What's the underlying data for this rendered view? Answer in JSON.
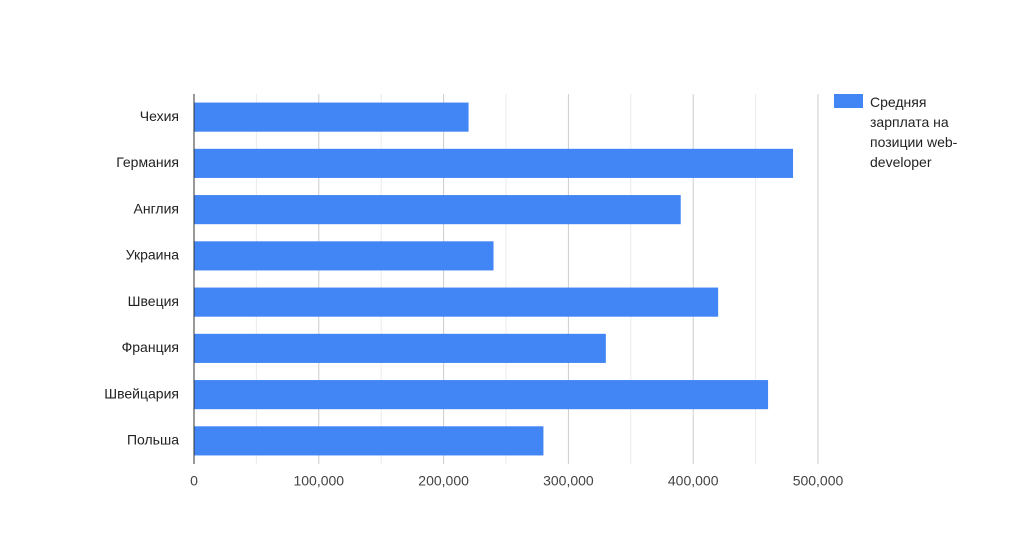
{
  "chart_data": {
    "type": "bar",
    "orientation": "horizontal",
    "categories": [
      "Чехия",
      "Германия",
      "Англия",
      "Украина",
      "Швеция",
      "Франция",
      "Швейцария",
      "Польша"
    ],
    "series": [
      {
        "name": "Средняя зарплата на позиции web-developer",
        "color": "#4285f4",
        "values": [
          220000,
          480000,
          390000,
          240000,
          420000,
          330000,
          460000,
          280000
        ]
      }
    ],
    "xlim": [
      0,
      500000
    ],
    "xticks": [
      0,
      {
        "value": 100000,
        "label": "100,000"
      },
      {
        "value": 200000,
        "label": "200,000"
      },
      {
        "value": 300000,
        "label": "300,000"
      },
      {
        "value": 400000,
        "label": "400,000"
      },
      {
        "value": 500000,
        "label": "500,000"
      }
    ],
    "xminorticks": [
      50000,
      150000,
      250000,
      350000,
      450000
    ],
    "grid": true,
    "legend": "right"
  }
}
